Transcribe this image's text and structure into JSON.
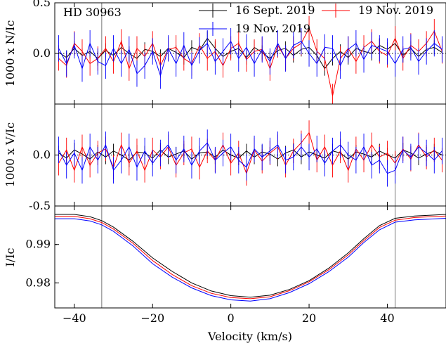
{
  "chart_data": [
    {
      "panel": "N",
      "type": "line",
      "ylabel": "1000 x N/Ic",
      "ylim": [
        -0.5,
        0.5
      ],
      "yticks": [
        0.0,
        0.5
      ],
      "ytick_labels": [
        "0.0",
        "0.5"
      ],
      "annotation": "HD 30963",
      "legend": {
        "placement": "top-right",
        "entries": [
          "16 Sept. 2019",
          "19 Nov. 2019",
          "19 Nov. 2019"
        ]
      },
      "series": [
        {
          "name": "16 Sept. 2019",
          "color": "#000000",
          "x": [
            -44,
            -42,
            -40,
            -38,
            -36,
            -34,
            -32,
            -30,
            -28,
            -26,
            -24,
            -22,
            -20,
            -18,
            -16,
            -14,
            -12,
            -10,
            -8,
            -6,
            -4,
            -2,
            0,
            2,
            4,
            6,
            8,
            10,
            12,
            14,
            16,
            18,
            20,
            22,
            24,
            26,
            28,
            30,
            32,
            34,
            36,
            38,
            40,
            42,
            44,
            46,
            48,
            50,
            52,
            54
          ],
          "y": [
            0.01,
            -0.04,
            0.05,
            -0.02,
            0.02,
            -0.05,
            0.03,
            -0.02,
            0.06,
            0.0,
            -0.05,
            0.04,
            0.02,
            -0.03,
            0.05,
            0.01,
            -0.04,
            0.06,
            0.03,
            0.15,
            0.05,
            -0.03,
            0.02,
            0.05,
            -0.04,
            0.06,
            0.01,
            -0.05,
            0.03,
            0.05,
            -0.02,
            0.04,
            0.06,
            -0.02,
            -0.15,
            -0.05,
            0.02,
            -0.04,
            0.05,
            0.02,
            0.0,
            0.08,
            0.04,
            0.1,
            -0.02,
            0.05,
            -0.03,
            0.04,
            0.06,
            0.01
          ],
          "err": 0.07
        },
        {
          "name": "19 Nov. 2019",
          "color": "#ff0000",
          "x": [
            -44,
            -42,
            -40,
            -38,
            -36,
            -34,
            -32,
            -30,
            -28,
            -26,
            -24,
            -22,
            -20,
            -18,
            -16,
            -14,
            -12,
            -10,
            -8,
            -6,
            -4,
            -2,
            0,
            2,
            4,
            6,
            8,
            10,
            12,
            14,
            16,
            18,
            20,
            22,
            24,
            26,
            28,
            30,
            32,
            34,
            36,
            38,
            40,
            42,
            44,
            46,
            48,
            50,
            52,
            54
          ],
          "y": [
            -0.05,
            -0.12,
            0.1,
            0.02,
            -0.1,
            -0.05,
            0.05,
            -0.08,
            0.12,
            -0.15,
            0.05,
            -0.03,
            0.1,
            -0.12,
            0.04,
            0.06,
            -0.05,
            -0.1,
            0.08,
            -0.05,
            0.02,
            -0.12,
            0.05,
            0.1,
            -0.06,
            0.02,
            0.04,
            -0.15,
            0.08,
            -0.05,
            0.05,
            0.1,
            0.25,
            0.02,
            -0.05,
            -0.42,
            -0.05,
            0.05,
            -0.08,
            0.06,
            0.12,
            0.02,
            -0.02,
            0.15,
            -0.05,
            0.08,
            0.02,
            0.1,
            0.22,
            0.02
          ],
          "err": 0.12
        },
        {
          "name": "19 Nov. 2019",
          "color": "#0000ff",
          "x": [
            -44,
            -42,
            -40,
            -38,
            -36,
            -34,
            -32,
            -30,
            -28,
            -26,
            -24,
            -22,
            -20,
            -18,
            -16,
            -14,
            -12,
            -10,
            -8,
            -6,
            -4,
            -2,
            0,
            2,
            4,
            6,
            8,
            10,
            12,
            14,
            16,
            18,
            20,
            22,
            24,
            26,
            28,
            30,
            32,
            34,
            36,
            38,
            40,
            42,
            44,
            46,
            48,
            50,
            52,
            54
          ],
          "y": [
            0.05,
            -0.1,
            0.08,
            -0.15,
            0.1,
            -0.08,
            -0.12,
            0.05,
            -0.1,
            0.04,
            -0.2,
            -0.12,
            0.02,
            -0.22,
            0.05,
            -0.1,
            0.08,
            -0.12,
            0.03,
            0.1,
            -0.08,
            0.02,
            0.12,
            -0.05,
            0.06,
            -0.1,
            0.04,
            -0.08,
            0.1,
            -0.05,
            0.08,
            0.12,
            0.0,
            -0.1,
            0.06,
            0.05,
            -0.12,
            0.04,
            0.1,
            -0.06,
            0.08,
            0.05,
            0.02,
            -0.1,
            0.04,
            0.06,
            -0.08,
            0.02,
            0.1,
            0.04
          ],
          "err": 0.13
        }
      ]
    },
    {
      "panel": "V",
      "type": "line",
      "ylabel": "1000 x V/Ic",
      "ylim": [
        -0.5,
        0.5
      ],
      "yticks": [
        -0.5,
        0.0
      ],
      "ytick_labels": [
        "-0.5",
        "0.0"
      ],
      "series": [
        {
          "name": "16 Sept. 2019",
          "color": "#000000",
          "x": [
            -44,
            -42,
            -40,
            -38,
            -36,
            -34,
            -32,
            -30,
            -28,
            -26,
            -24,
            -22,
            -20,
            -18,
            -16,
            -14,
            -12,
            -10,
            -8,
            -6,
            -4,
            -2,
            0,
            2,
            4,
            6,
            8,
            10,
            12,
            14,
            16,
            18,
            20,
            22,
            24,
            26,
            28,
            30,
            32,
            34,
            36,
            38,
            40,
            42,
            44,
            46,
            48,
            50,
            52,
            54
          ],
          "y": [
            0.02,
            -0.03,
            0.05,
            0.01,
            -0.04,
            0.03,
            -0.02,
            0.04,
            0.0,
            -0.05,
            0.03,
            0.02,
            -0.03,
            0.05,
            -0.02,
            0.01,
            0.04,
            -0.04,
            0.02,
            0.03,
            -0.02,
            0.05,
            0.0,
            -0.03,
            0.04,
            -0.02,
            0.03,
            0.01,
            -0.04,
            0.02,
            0.05,
            -0.02,
            0.03,
            0.0,
            -0.03,
            0.04,
            0.02,
            -0.04,
            0.03,
            0.01,
            -0.02,
            0.04,
            0.0,
            -0.03,
            0.05,
            0.02,
            -0.03,
            0.01,
            0.04,
            0.0
          ],
          "err": 0.07
        },
        {
          "name": "19 Nov. 2019",
          "color": "#ff0000",
          "x": [
            -44,
            -42,
            -40,
            -38,
            -36,
            -34,
            -32,
            -30,
            -28,
            -26,
            -24,
            -22,
            -20,
            -18,
            -16,
            -14,
            -12,
            -10,
            -8,
            -6,
            -4,
            -2,
            0,
            2,
            4,
            6,
            8,
            10,
            12,
            14,
            16,
            18,
            20,
            22,
            24,
            26,
            28,
            30,
            32,
            34,
            36,
            38,
            40,
            42,
            44,
            46,
            48,
            50,
            52,
            54
          ],
          "y": [
            -0.08,
            0.05,
            -0.15,
            0.08,
            -0.1,
            0.02,
            0.06,
            -0.12,
            0.1,
            -0.08,
            0.04,
            -0.15,
            0.05,
            -0.02,
            0.08,
            -0.1,
            0.02,
            0.06,
            -0.12,
            0.04,
            -0.05,
            0.1,
            -0.08,
            0.02,
            -0.18,
            0.05,
            -0.06,
            0.02,
            0.08,
            -0.1,
            0.04,
            0.12,
            0.22,
            -0.05,
            0.08,
            -0.1,
            0.04,
            -0.15,
            0.06,
            -0.05,
            0.1,
            -0.02,
            0.02,
            -0.08,
            0.06,
            -0.04,
            0.1,
            -0.02,
            0.05,
            -0.05
          ],
          "err": 0.12
        },
        {
          "name": "19 Nov. 2019",
          "color": "#0000ff",
          "x": [
            -44,
            -42,
            -40,
            -38,
            -36,
            -34,
            -32,
            -30,
            -28,
            -26,
            -24,
            -22,
            -20,
            -18,
            -16,
            -14,
            -12,
            -10,
            -8,
            -6,
            -4,
            -2,
            0,
            2,
            4,
            6,
            8,
            10,
            12,
            14,
            16,
            18,
            20,
            22,
            24,
            26,
            28,
            30,
            32,
            34,
            36,
            38,
            40,
            42,
            44,
            46,
            48,
            50,
            52,
            54
          ],
          "y": [
            0.05,
            -0.1,
            0.02,
            -0.15,
            0.08,
            -0.05,
            0.1,
            -0.15,
            -0.05,
            0.08,
            -0.12,
            0.04,
            -0.08,
            0.02,
            0.1,
            -0.05,
            0.06,
            -0.1,
            0.04,
            0.12,
            -0.05,
            0.02,
            0.08,
            -0.05,
            -0.12,
            0.06,
            -0.02,
            0.04,
            0.1,
            -0.05,
            -0.02,
            0.08,
            -0.02,
            0.06,
            -0.08,
            0.04,
            0.1,
            0.0,
            -0.05,
            0.08,
            -0.1,
            -0.05,
            -0.18,
            -0.15,
            0.05,
            -0.02,
            0.08,
            0.02,
            -0.05,
            0.04
          ],
          "err": 0.13
        }
      ]
    },
    {
      "panel": "I",
      "type": "line",
      "ylabel": "I/Ic",
      "xlabel": "Velocity (km/s)",
      "xlim": [
        -45,
        55
      ],
      "xticks": [
        -40,
        -20,
        0,
        20,
        40
      ],
      "xtick_labels": [
        "−40",
        "−20",
        "0",
        "20",
        "40"
      ],
      "ylim": [
        0.9735,
        1.0
      ],
      "yticks": [
        0.98,
        0.99
      ],
      "ytick_labels": [
        "0.98",
        "0.99"
      ],
      "vlines": [
        -33,
        42
      ],
      "series": [
        {
          "name": "16 Sept. 2019",
          "color": "#000000",
          "x": [
            -45,
            -40,
            -36,
            -33,
            -30,
            -25,
            -20,
            -15,
            -10,
            -5,
            0,
            5,
            10,
            15,
            20,
            25,
            30,
            34,
            38,
            42,
            47,
            55
          ],
          "y": [
            0.9978,
            0.9978,
            0.9972,
            0.9962,
            0.9945,
            0.9908,
            0.9865,
            0.983,
            0.98,
            0.9779,
            0.9767,
            0.9763,
            0.9768,
            0.9783,
            0.9806,
            0.9838,
            0.9878,
            0.9915,
            0.9949,
            0.9968,
            0.9974,
            0.9978
          ]
        },
        {
          "name": "19 Nov. 2019",
          "color": "#ff0000",
          "x": [
            -45,
            -40,
            -36,
            -33,
            -30,
            -25,
            -20,
            -15,
            -10,
            -5,
            0,
            5,
            10,
            15,
            20,
            25,
            30,
            34,
            38,
            42,
            47,
            55
          ],
          "y": [
            0.9973,
            0.9973,
            0.9967,
            0.9957,
            0.994,
            0.9903,
            0.9858,
            0.9822,
            0.9793,
            0.9773,
            0.9762,
            0.9759,
            0.9764,
            0.978,
            0.9803,
            0.9834,
            0.9873,
            0.991,
            0.9944,
            0.9963,
            0.997,
            0.9974
          ]
        },
        {
          "name": "19 Nov. 2019",
          "color": "#0000ff",
          "x": [
            -45,
            -40,
            -36,
            -33,
            -30,
            -25,
            -20,
            -15,
            -10,
            -5,
            0,
            5,
            10,
            15,
            20,
            25,
            30,
            34,
            38,
            42,
            47,
            55
          ],
          "y": [
            0.9967,
            0.9967,
            0.9961,
            0.9951,
            0.9934,
            0.9896,
            0.985,
            0.9815,
            0.9787,
            0.9767,
            0.9756,
            0.9753,
            0.9759,
            0.9775,
            0.9798,
            0.9829,
            0.9867,
            0.9905,
            0.9938,
            0.9958,
            0.9964,
            0.9968
          ]
        }
      ]
    }
  ]
}
